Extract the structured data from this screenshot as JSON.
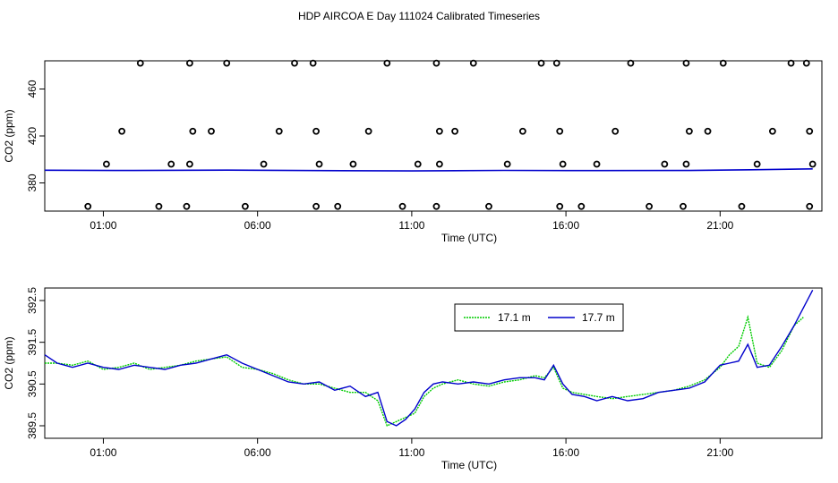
{
  "figure": {
    "title": "HDP AIRCOA E  Day 111024  Calibrated Timeseries"
  },
  "chart_data": [
    {
      "type": "scatter",
      "xlabel": "Time (UTC)",
      "ylabel": "CO2 (ppm)",
      "x_unit": "hours UTC",
      "xlim": [
        -0.9,
        24.3
      ],
      "ylim": [
        356,
        484
      ],
      "x_ticks": [
        {
          "value": 1,
          "label": "01:00"
        },
        {
          "value": 6,
          "label": "06:00"
        },
        {
          "value": 11,
          "label": "11:00"
        },
        {
          "value": 16,
          "label": "16:00"
        },
        {
          "value": 21,
          "label": "21:00"
        }
      ],
      "y_ticks": [
        {
          "value": 380,
          "label": "380"
        },
        {
          "value": 420,
          "label": "420"
        },
        {
          "value": 460,
          "label": "460"
        }
      ],
      "line": {
        "name": "",
        "color": "#0000cc",
        "x": [
          -0.9,
          2,
          5,
          8,
          11,
          14,
          17,
          20,
          22,
          24.0
        ],
        "y": [
          390.8,
          390.6,
          390.9,
          390.5,
          390.2,
          390.7,
          390.5,
          390.6,
          391.2,
          392.0
        ]
      },
      "points": {
        "marker": "circle-open",
        "color": "#000000",
        "x": [
          0.5,
          1.1,
          1.6,
          2.2,
          2.8,
          3.2,
          3.7,
          3.8,
          3.9,
          3.8,
          4.5,
          5.0,
          5.6,
          6.2,
          6.7,
          7.2,
          7.8,
          7.9,
          8.0,
          7.9,
          8.6,
          9.1,
          9.6,
          10.2,
          10.7,
          11.2,
          11.8,
          11.9,
          11.9,
          11.8,
          12.4,
          13.0,
          13.5,
          14.1,
          14.6,
          15.2,
          15.7,
          15.8,
          15.9,
          15.8,
          16.5,
          17.0,
          17.6,
          18.1,
          18.7,
          19.2,
          19.8,
          19.9,
          20.0,
          19.9,
          20.6,
          21.1,
          21.7,
          22.2,
          22.7,
          23.3,
          23.8,
          23.9,
          24.0,
          23.9
        ],
        "y": [
          360,
          396,
          424,
          482,
          360,
          396,
          360,
          396,
          424,
          482,
          424,
          482,
          360,
          396,
          424,
          482,
          482,
          424,
          396,
          360,
          360,
          396,
          424,
          482,
          360,
          396,
          360,
          396,
          424,
          482,
          424,
          482,
          360,
          396,
          424,
          482,
          482,
          424,
          396,
          360,
          360,
          396,
          424,
          482,
          360,
          396,
          360,
          396,
          424,
          482,
          424,
          482,
          360,
          396,
          424,
          482,
          482,
          424,
          396,
          360
        ]
      }
    },
    {
      "type": "line",
      "xlabel": "Time (UTC)",
      "ylabel": "CO2 (ppm)",
      "x_unit": "hours UTC",
      "xlim": [
        -0.9,
        24.3
      ],
      "ylim": [
        389.2,
        392.8
      ],
      "x_ticks": [
        {
          "value": 1,
          "label": "01:00"
        },
        {
          "value": 6,
          "label": "06:00"
        },
        {
          "value": 11,
          "label": "11:00"
        },
        {
          "value": 16,
          "label": "16:00"
        },
        {
          "value": 21,
          "label": "21:00"
        }
      ],
      "y_ticks": [
        {
          "value": 389.5,
          "label": "389.5"
        },
        {
          "value": 390.5,
          "label": "390.5"
        },
        {
          "value": 391.5,
          "label": "391.5"
        },
        {
          "value": 392.5,
          "label": "392.5"
        }
      ],
      "legend": "top-right-inset",
      "series": [
        {
          "name": "17.1 m",
          "color": "#00cc00",
          "dash": "2,1",
          "x": [
            -0.9,
            -0.5,
            0,
            0.5,
            1,
            1.5,
            2,
            2.5,
            3,
            3.5,
            4,
            4.5,
            5,
            5.5,
            6,
            6.5,
            7,
            7.5,
            8,
            8.5,
            9,
            9.5,
            9.9,
            10.2,
            10.5,
            10.8,
            11.1,
            11.4,
            11.7,
            12,
            12.5,
            13,
            13.5,
            14,
            14.5,
            15,
            15.3,
            15.6,
            15.9,
            16.2,
            16.6,
            17,
            17.5,
            18,
            18.5,
            19,
            19.5,
            20,
            20.5,
            21,
            21.3,
            21.6,
            21.9,
            22.2,
            22.6,
            23,
            23.4,
            23.7
          ],
          "y": [
            391.0,
            391.0,
            390.95,
            391.05,
            390.85,
            390.9,
            391.0,
            390.85,
            390.9,
            390.95,
            391.05,
            391.1,
            391.15,
            390.9,
            390.85,
            390.75,
            390.6,
            390.5,
            390.5,
            390.4,
            390.3,
            390.3,
            390.1,
            389.5,
            389.6,
            389.7,
            389.8,
            390.2,
            390.4,
            390.5,
            390.6,
            390.5,
            390.45,
            390.55,
            390.6,
            390.7,
            390.65,
            390.9,
            390.4,
            390.3,
            390.25,
            390.2,
            390.15,
            390.2,
            390.25,
            390.3,
            390.35,
            390.45,
            390.6,
            390.9,
            391.2,
            391.4,
            392.1,
            391.0,
            390.9,
            391.3,
            391.9,
            392.1
          ]
        },
        {
          "name": "17.7 m",
          "color": "#0000cc",
          "dash": "",
          "x": [
            -0.9,
            -0.5,
            0,
            0.5,
            1,
            1.5,
            2,
            2.5,
            3,
            3.5,
            4,
            4.5,
            5,
            5.5,
            6,
            6.5,
            7,
            7.5,
            8,
            8.5,
            9,
            9.5,
            9.9,
            10.2,
            10.5,
            10.8,
            11.1,
            11.4,
            11.7,
            12,
            12.5,
            13,
            13.5,
            14,
            14.5,
            15,
            15.3,
            15.6,
            15.9,
            16.2,
            16.6,
            17,
            17.5,
            18,
            18.5,
            19,
            19.5,
            20,
            20.5,
            21,
            21.3,
            21.6,
            21.9,
            22.2,
            22.6,
            23,
            23.4,
            24.0
          ],
          "y": [
            391.2,
            391.0,
            390.9,
            391.0,
            390.9,
            390.85,
            390.95,
            390.9,
            390.85,
            390.95,
            391.0,
            391.1,
            391.2,
            391.0,
            390.85,
            390.7,
            390.55,
            390.5,
            390.55,
            390.35,
            390.45,
            390.2,
            390.3,
            389.6,
            389.5,
            389.65,
            389.9,
            390.3,
            390.5,
            390.55,
            390.5,
            390.55,
            390.5,
            390.6,
            390.65,
            390.65,
            390.6,
            390.95,
            390.5,
            390.25,
            390.2,
            390.1,
            390.2,
            390.1,
            390.15,
            390.3,
            390.35,
            390.4,
            390.55,
            390.95,
            391.0,
            391.05,
            391.45,
            390.9,
            390.95,
            391.4,
            391.9,
            392.75
          ]
        }
      ]
    }
  ]
}
